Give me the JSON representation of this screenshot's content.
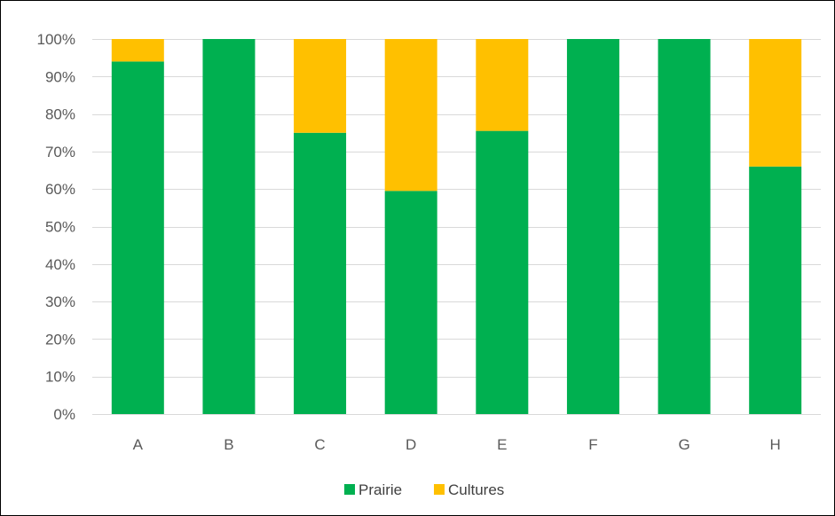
{
  "chart_data": {
    "type": "bar",
    "stacked": true,
    "categories": [
      "A",
      "B",
      "C",
      "D",
      "E",
      "F",
      "G",
      "H"
    ],
    "series": [
      {
        "name": "Prairie",
        "color": "#00b050",
        "values": [
          94,
          100,
          75,
          59.5,
          75.5,
          100,
          100,
          66
        ]
      },
      {
        "name": "Cultures",
        "color": "#ffc000",
        "values": [
          6,
          0,
          25,
          40.5,
          24.5,
          0,
          0,
          34
        ]
      }
    ],
    "ylim": [
      0,
      100
    ],
    "yticks": [
      0,
      10,
      20,
      30,
      40,
      50,
      60,
      70,
      80,
      90,
      100
    ],
    "ytick_labels": [
      "0%",
      "10%",
      "20%",
      "30%",
      "40%",
      "50%",
      "60%",
      "70%",
      "80%",
      "90%",
      "100%"
    ],
    "grid": true,
    "legend_position": "bottom"
  }
}
